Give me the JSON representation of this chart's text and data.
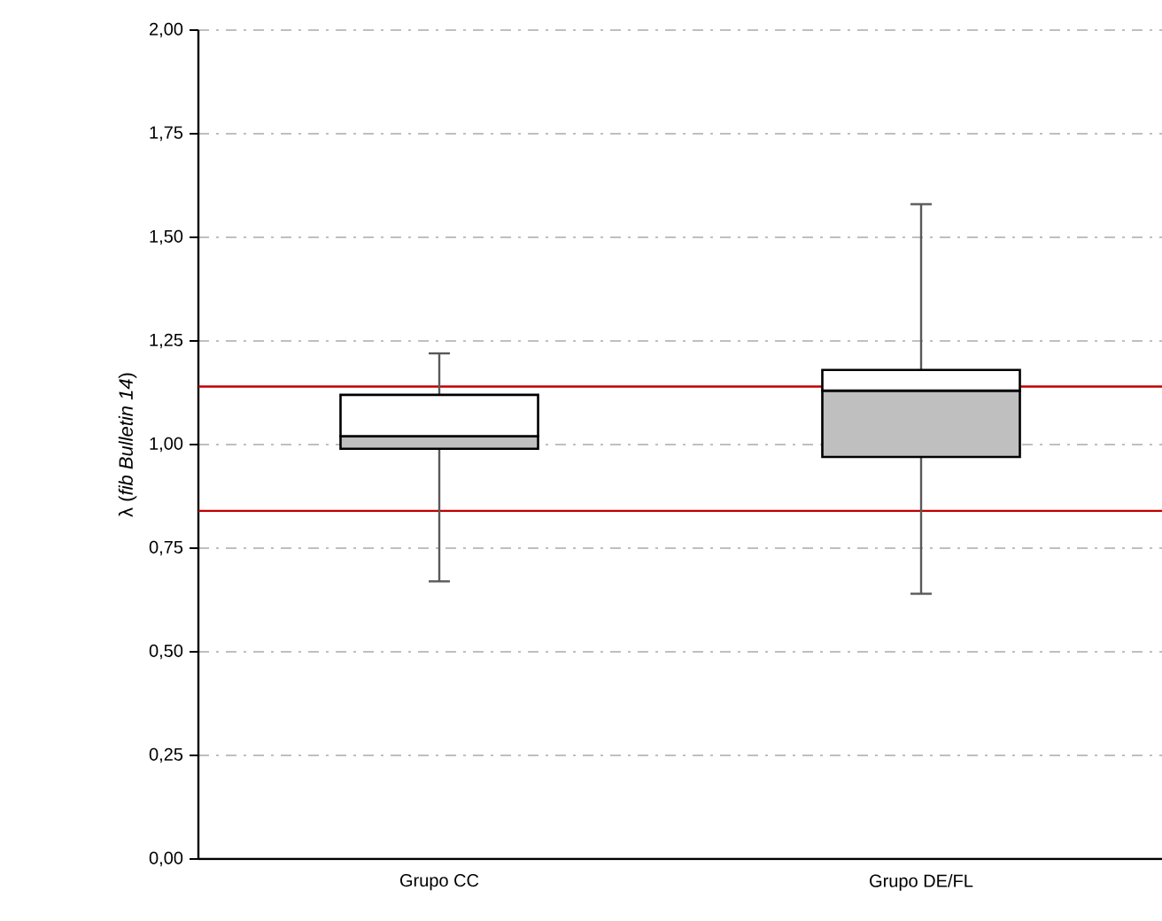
{
  "chart_data": {
    "type": "box",
    "categories": [
      "Grupo CC",
      "Grupo DE/FL"
    ],
    "ylabel": "λ (*fib Bulletin 14*)",
    "series": [
      {
        "color": "#bfbfbf",
        "boxes": [
          {
            "low": 0.67,
            "q1": 0.99,
            "median": 1.02,
            "q3": 1.12,
            "high": 1.22
          },
          {
            "low": 0.64,
            "q1": 0.97,
            "median": 1.13,
            "q3": 1.18,
            "high": 1.58
          }
        ]
      }
    ],
    "ylim": [
      0,
      2
    ],
    "yticks": [
      {
        "value": 0,
        "label": "0,00"
      },
      {
        "value": 0.25,
        "label": "0,25"
      },
      {
        "value": 0.5,
        "label": "0,50"
      },
      {
        "value": 0.75,
        "label": "0,75"
      },
      {
        "value": 1,
        "label": "1,00"
      },
      {
        "value": 1.25,
        "label": "1,25"
      },
      {
        "value": 1.5,
        "label": "1,50"
      },
      {
        "value": 1.75,
        "label": "1,75"
      },
      {
        "value": 2,
        "label": "2,00"
      }
    ],
    "grid": "y",
    "ref_lines": [
      {
        "axis": "y",
        "value": 1.14,
        "color": "#c00000"
      },
      {
        "axis": "y",
        "value": 0.84,
        "color": "#c00000"
      }
    ]
  }
}
